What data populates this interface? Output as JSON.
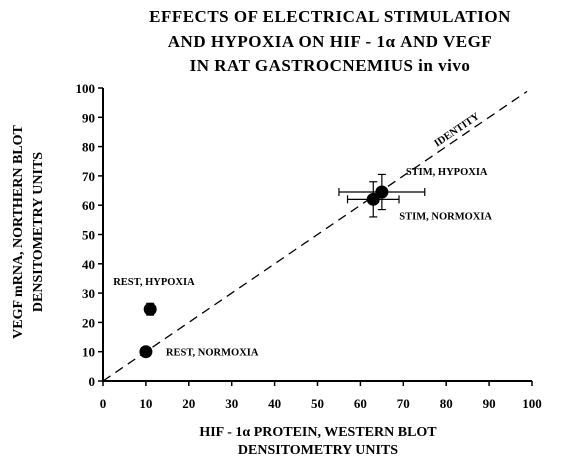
{
  "chart_data": {
    "type": "scatter",
    "title": [
      "EFFECTS OF ELECTRICAL STIMULATION",
      "AND HYPOXIA ON HIF - 1α AND VEGF",
      "IN    RAT GASTROCNEMIUS in vivo"
    ],
    "xlabel": [
      "HIF - 1α PROTEIN, WESTERN BLOT",
      "DENSITOMETRY UNITS"
    ],
    "ylabel": [
      "VEGF mRNA, NORTHERN BLOT",
      "DENSITOMETRY UNITS"
    ],
    "xlim": [
      0,
      100
    ],
    "ylim": [
      0,
      100
    ],
    "xticks": [
      0,
      10,
      20,
      30,
      40,
      50,
      60,
      70,
      80,
      90,
      100
    ],
    "yticks": [
      0,
      10,
      20,
      30,
      40,
      50,
      60,
      70,
      80,
      90,
      100
    ],
    "identity_label": "IDENTITY",
    "color": "#000000",
    "series": [
      {
        "name": "REST, NORMOXIA",
        "x": 10,
        "y": 10,
        "xerr": 1,
        "yerr": 1
      },
      {
        "name": "REST, HYPOXIA",
        "x": 11,
        "y": 24.5,
        "xerr": 1,
        "yerr": 2
      },
      {
        "name": "STIM, NORMOXIA",
        "x": 63,
        "y": 62,
        "xerr": 6,
        "yerr": 6
      },
      {
        "name": "STIM, HYPOXIA",
        "x": 65,
        "y": 64.5,
        "xerr": 10,
        "yerr": 6
      }
    ]
  }
}
